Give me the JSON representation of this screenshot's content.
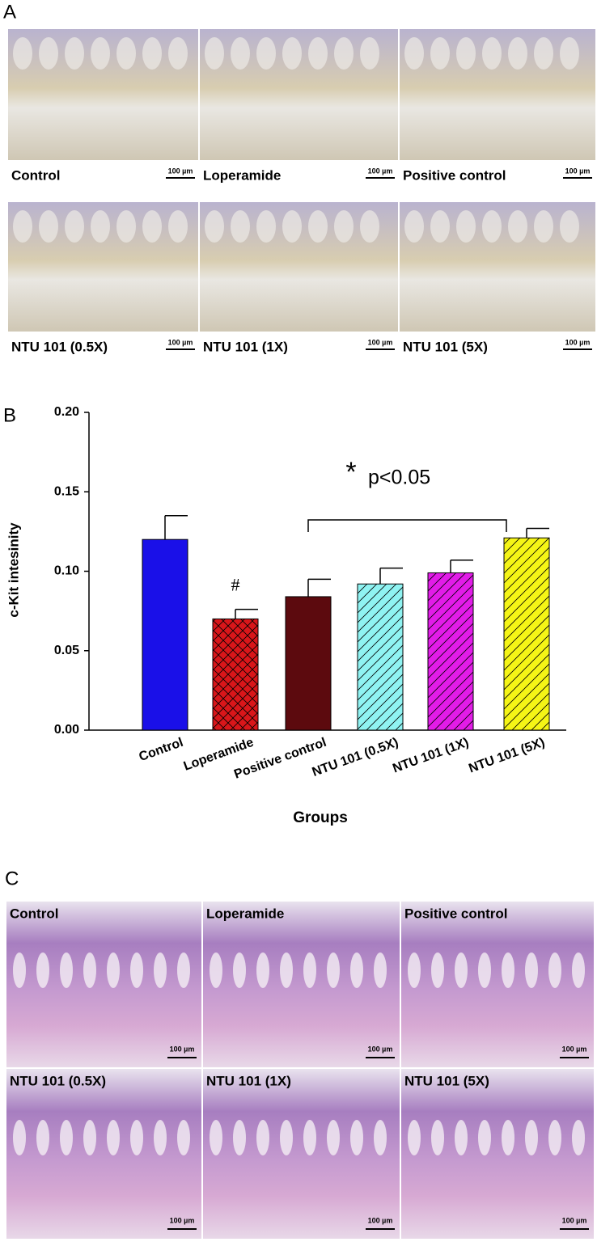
{
  "panel_a": {
    "label": "A",
    "images": [
      {
        "caption": "Control",
        "scale_bar": "100 µm"
      },
      {
        "caption": "Loperamide",
        "scale_bar": "100 µm"
      },
      {
        "caption": "Positive control",
        "scale_bar": "100 µm"
      },
      {
        "caption": "NTU 101 (0.5X)",
        "scale_bar": "100 µm"
      },
      {
        "caption": "NTU 101 (1X)",
        "scale_bar": "100 µm"
      },
      {
        "caption": "NTU 101 (5X)",
        "scale_bar": "100 µm"
      }
    ]
  },
  "panel_b_label": "B",
  "chart_data": {
    "type": "bar",
    "ylabel": "c-Kit intesinity",
    "xlabel": "Groups",
    "categories": [
      "Control",
      "Loperamide",
      "Positive control",
      "NTU 101 (0.5X)",
      "NTU 101 (1X)",
      "NTU 101 (5X)"
    ],
    "values": [
      0.12,
      0.07,
      0.084,
      0.092,
      0.099,
      0.121
    ],
    "errors": [
      0.015,
      0.006,
      0.011,
      0.01,
      0.008,
      0.006
    ],
    "colors": [
      "#1a10e8",
      "#d9161a",
      "#5c0a0e",
      "#8ff3f2",
      "#e21ce8",
      "#f5f516"
    ],
    "hatches": [
      "none",
      "cross",
      "none",
      "diagonal",
      "diagonal",
      "diagonal"
    ],
    "ylim": [
      0,
      0.2
    ],
    "yticks": [
      {
        "value": 0,
        "label": "0.00"
      },
      {
        "value": 0.05,
        "label": "0.05"
      },
      {
        "value": 0.1,
        "label": "0.10"
      },
      {
        "value": 0.15,
        "label": "0.15"
      },
      {
        "value": 0.2,
        "label": "0.20"
      }
    ],
    "annotations": [
      "#",
      "*",
      "p<0.05"
    ]
  },
  "panel_c": {
    "label": "C",
    "images": [
      {
        "caption": "Control",
        "scale_bar": "100 µm"
      },
      {
        "caption": "Loperamide",
        "scale_bar": "100 µm"
      },
      {
        "caption": "Positive control",
        "scale_bar": "100 µm"
      },
      {
        "caption": "NTU 101 (0.5X)",
        "scale_bar": "100 µm"
      },
      {
        "caption": "NTU 101 (1X)",
        "scale_bar": "100 µm"
      },
      {
        "caption": "NTU 101 (5X)",
        "scale_bar": "100 µm"
      }
    ]
  }
}
